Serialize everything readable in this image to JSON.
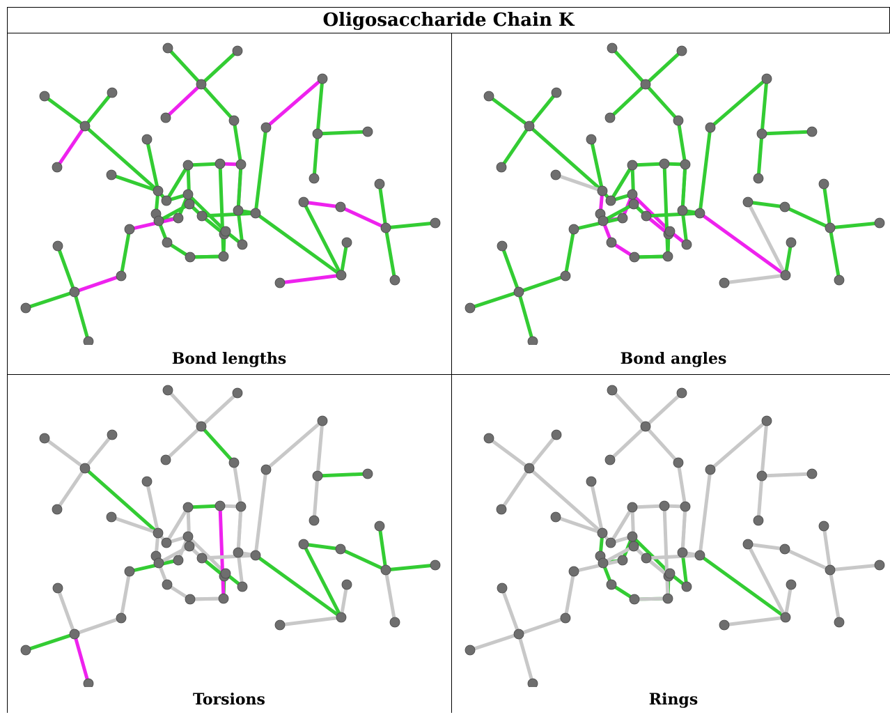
{
  "title": "Oligosaccharide Chain K",
  "colors": {
    "ok": "#33cc33",
    "outlier": "#ee22ee",
    "unchecked": "#c8c8c8",
    "atom": "#6e6e6e"
  },
  "panels": [
    {
      "caption": "Bond lengths",
      "bond_colors": "ggmggmggmgggggmggggggmggggggggggggggggmmggggmmgmggggggggggg"
    },
    {
      "caption": "Bond angles",
      "bond_colors": "gggggggggggggggggugggggggmggmmmmmmmgmuggggggugggggggggggggg"
    },
    {
      "caption": "Torsions",
      "bond_colors": "uuuguuuuuuguuuuguuuuguuuugguuuuuuugugggggguuuguuugmmuuuumuu"
    },
    {
      "caption": "Rings",
      "bond_colors": "uuuuuuuuuuuuuuuuuuuuuuuuuuggggggggggguuuuuuuuuuuuuuuuuuuuuu"
    }
  ]
}
